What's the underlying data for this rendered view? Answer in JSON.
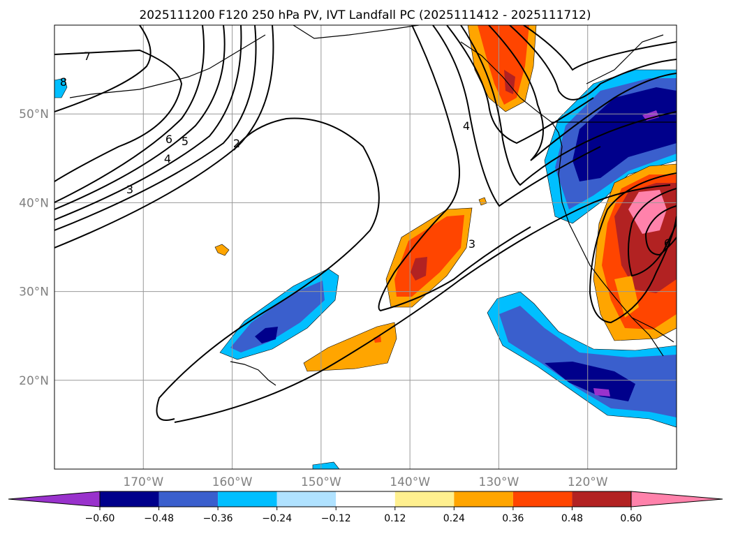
{
  "title": "2025111200 F120 250 hPa PV, IVT Landfall PC (2025111412 - 2025111712)",
  "map": {
    "lon_range": [
      -180,
      -110
    ],
    "lat_range": [
      10,
      60
    ],
    "lat_ticks": [
      {
        "value": 50,
        "label": "50°N"
      },
      {
        "value": 40,
        "label": "40°N"
      },
      {
        "value": 30,
        "label": "30°N"
      },
      {
        "value": 20,
        "label": "20°N"
      }
    ],
    "lon_ticks": [
      {
        "value": -170,
        "label": "170°W"
      },
      {
        "value": -160,
        "label": "160°W"
      },
      {
        "value": -150,
        "label": "150°W"
      },
      {
        "value": -140,
        "label": "140°W"
      },
      {
        "value": -130,
        "label": "130°W"
      },
      {
        "value": -120,
        "label": "120°W"
      }
    ],
    "contour_labels": [
      "7",
      "8",
      "6",
      "5",
      "4",
      "3",
      "2",
      "4",
      "3",
      "6"
    ]
  },
  "colorbar": {
    "colors": [
      "#9932cc",
      "#00008b",
      "#3a5fcd",
      "#00bfff",
      "#b0e2ff",
      "#ffffff",
      "#fff08f",
      "#ffa500",
      "#ff4500",
      "#b22222",
      "#ff82ab"
    ],
    "labels": [
      "−0.60",
      "−0.48",
      "−0.36",
      "−0.24",
      "−0.12",
      "0.12",
      "0.24",
      "0.36",
      "0.48",
      "0.60"
    ]
  }
}
